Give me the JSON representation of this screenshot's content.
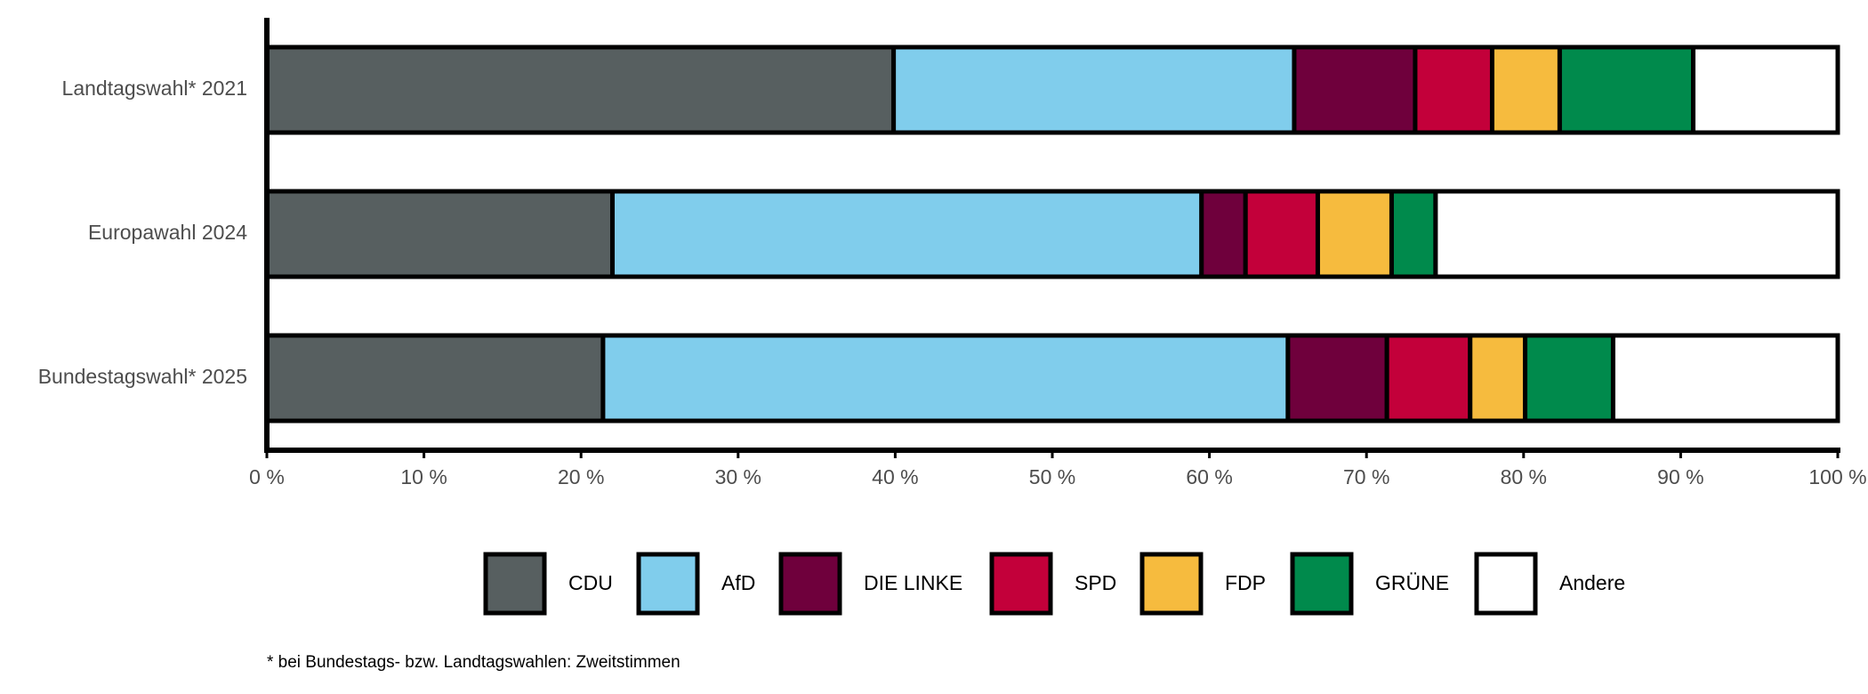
{
  "chart_data": {
    "type": "bar",
    "orientation": "horizontal",
    "stacked": true,
    "categories": [
      "Landtagswahl* 2021",
      "Europawahl 2024",
      "Bundestagswahl* 2025"
    ],
    "series": [
      {
        "name": "CDU",
        "color": "#575f60",
        "values": [
          39.9,
          22.0,
          21.4
        ]
      },
      {
        "name": "AfD",
        "color": "#80cdec",
        "values": [
          25.5,
          37.5,
          43.6
        ]
      },
      {
        "name": "DIE LINKE",
        "color": "#6f003c",
        "values": [
          7.7,
          2.8,
          6.3
        ]
      },
      {
        "name": "SPD",
        "color": "#c3003a",
        "values": [
          4.9,
          4.6,
          5.3
        ]
      },
      {
        "name": "FDP",
        "color": "#f6bb3e",
        "values": [
          4.3,
          4.7,
          3.5
        ]
      },
      {
        "name": "GRÜNE",
        "color": "#008a4c",
        "values": [
          8.5,
          2.8,
          5.6
        ]
      },
      {
        "name": "Andere",
        "color": "#ffffff",
        "values": [
          9.2,
          25.6,
          14.3
        ]
      }
    ],
    "xlim": [
      0,
      100
    ],
    "xticks": [
      {
        "value": 0,
        "label": "0 %"
      },
      {
        "value": 10,
        "label": "10 %"
      },
      {
        "value": 20,
        "label": "20 %"
      },
      {
        "value": 30,
        "label": "30 %"
      },
      {
        "value": 40,
        "label": "40 %"
      },
      {
        "value": 50,
        "label": "50 %"
      },
      {
        "value": 60,
        "label": "60 %"
      },
      {
        "value": 70,
        "label": "70 %"
      },
      {
        "value": 80,
        "label": "80 %"
      },
      {
        "value": 90,
        "label": "90 %"
      },
      {
        "value": 100,
        "label": "100 %"
      }
    ],
    "legend": "bottom",
    "footnote": "* bei Bundestags- bzw. Landtagswahlen: Zweitstimmen"
  }
}
